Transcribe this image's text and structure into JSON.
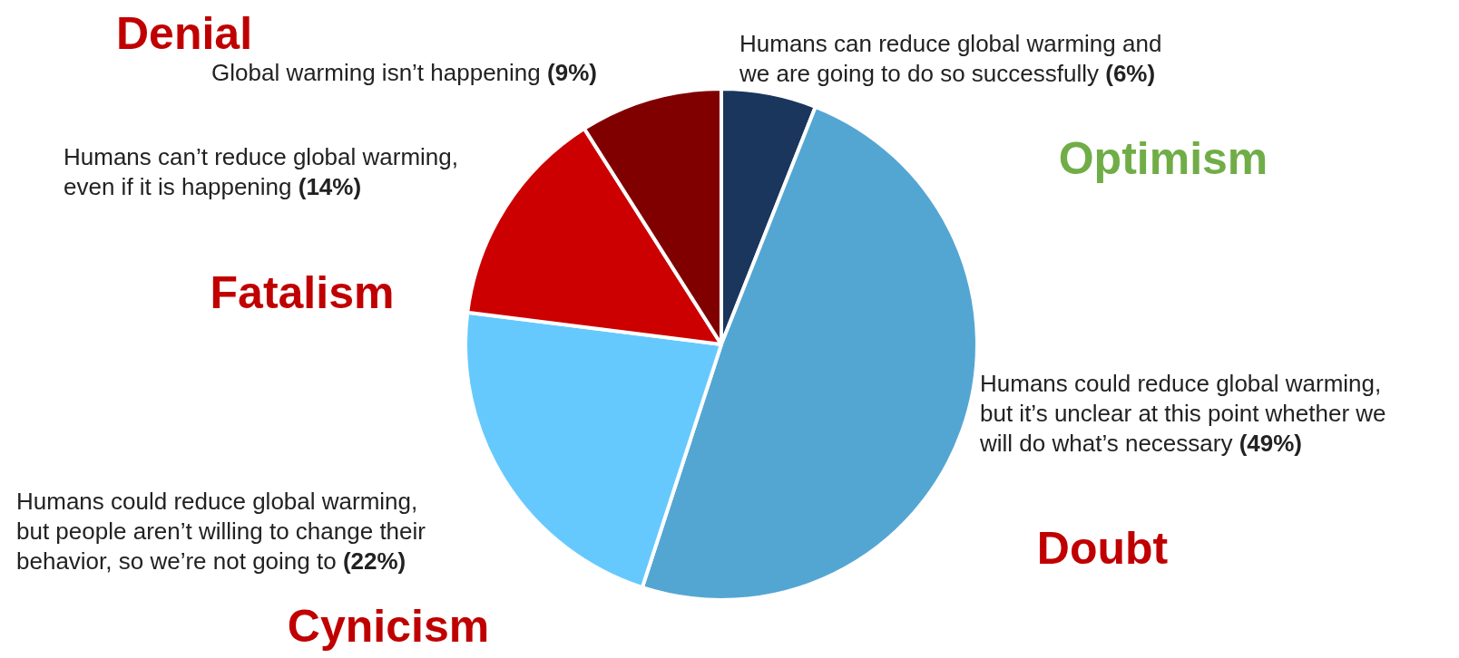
{
  "chart_data": {
    "type": "pie",
    "categories": [
      "Humans can reduce global warming and we are going to do so successfully",
      "Humans could reduce global warming, but it’s unclear at this point whether we will do what’s necessary",
      "Humans could reduce global warming, but people aren’t willing to change their behavior, so we’re not going to",
      "Humans can’t reduce global warming, even if it is happening",
      "Global warming isn’t happening"
    ],
    "values": [
      6,
      49,
      22,
      14,
      9
    ],
    "colors": [
      "#1a365d",
      "#54a6d2",
      "#66c9fe",
      "#cc0000",
      "#800000"
    ],
    "value_labels": [
      "(6%)",
      "(49%)",
      "(22%)",
      "(14%)",
      "(9%)"
    ],
    "annotations": [
      "Optimism",
      "Doubt",
      "Cynicism",
      "Fatalism",
      "Denial"
    ]
  }
}
